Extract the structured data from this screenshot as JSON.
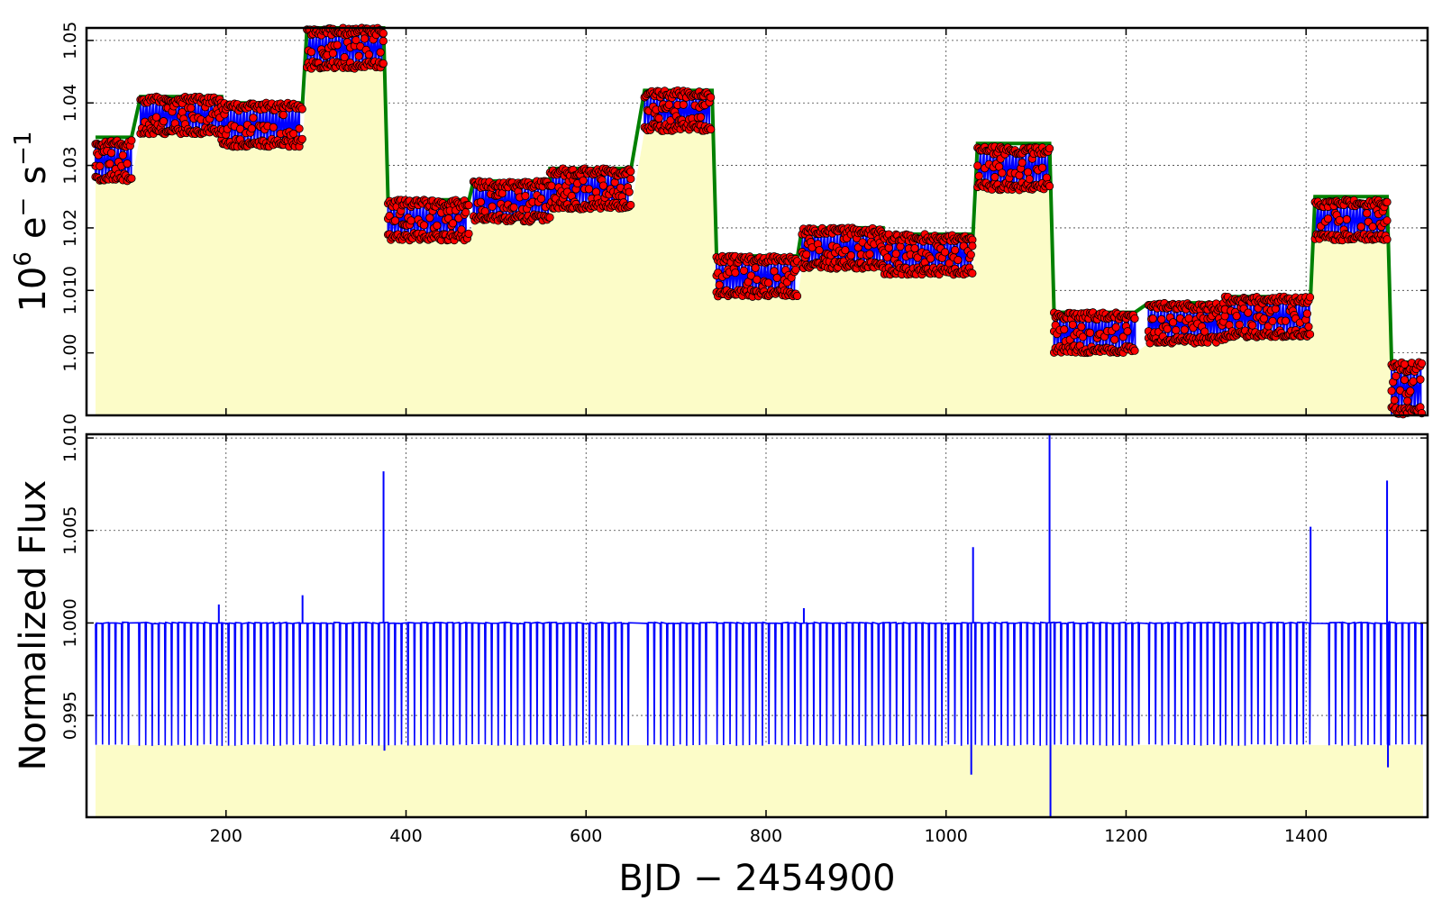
{
  "chart_data": [
    {
      "id": "top",
      "type": "scatter",
      "ylabel_base": "10",
      "ylabel_exp": "6",
      "ylabel_unit1": "e",
      "ylabel_unit1_sup": "−",
      "ylabel_unit2": "s",
      "ylabel_unit2_sup": "−1",
      "xlim": [
        45,
        1535
      ],
      "ylim": [
        0.99,
        1.052
      ],
      "grid": true,
      "yticks": [
        1.0,
        1.01,
        1.02,
        1.03,
        1.04,
        1.05
      ],
      "ytick_labels": [
        "1.00",
        "1.010",
        "1.02",
        "1.03",
        "1.04",
        "1.05"
      ],
      "xticks": [
        200,
        400,
        600,
        800,
        1000,
        1200,
        1400
      ],
      "colors": {
        "fill": "#fcfcc8",
        "trend": "#008000",
        "points": "#ff0000",
        "point_edge": "#000000",
        "line": "#0000ff"
      },
      "quarters": [
        {
          "x0": 55,
          "x1": 95,
          "lo": 1.0275,
          "hi": 1.034,
          "trend": 1.0345
        },
        {
          "x0": 105,
          "x1": 195,
          "lo": 1.035,
          "hi": 1.041,
          "trend": 1.041
        },
        {
          "x0": 195,
          "x1": 285,
          "lo": 1.033,
          "hi": 1.04,
          "trend": 1.04
        },
        {
          "x0": 290,
          "x1": 375,
          "lo": 1.0455,
          "hi": 1.052,
          "trend": 1.052
        },
        {
          "x0": 380,
          "x1": 470,
          "lo": 1.018,
          "hi": 1.0245,
          "trend": 1.0245
        },
        {
          "x0": 475,
          "x1": 560,
          "lo": 1.021,
          "hi": 1.0275,
          "trend": 1.0275
        },
        {
          "x0": 560,
          "x1": 650,
          "lo": 1.023,
          "hi": 1.0295,
          "trend": 1.0295
        },
        {
          "x0": 665,
          "x1": 740,
          "lo": 1.0355,
          "hi": 1.042,
          "trend": 1.042
        },
        {
          "x0": 745,
          "x1": 835,
          "lo": 1.009,
          "hi": 1.0155,
          "trend": 1.0155
        },
        {
          "x0": 840,
          "x1": 930,
          "lo": 1.0135,
          "hi": 1.02,
          "trend": 1.02
        },
        {
          "x0": 930,
          "x1": 1030,
          "lo": 1.0125,
          "hi": 1.019,
          "trend": 1.019
        },
        {
          "x0": 1035,
          "x1": 1115,
          "lo": 1.026,
          "hi": 1.033,
          "trend": 1.0335
        },
        {
          "x0": 1120,
          "x1": 1210,
          "lo": 1.0,
          "hi": 1.0065,
          "trend": 1.0065
        },
        {
          "x0": 1225,
          "x1": 1310,
          "lo": 1.0015,
          "hi": 1.008,
          "trend": 1.008
        },
        {
          "x0": 1310,
          "x1": 1405,
          "lo": 1.0025,
          "hi": 1.009,
          "trend": 1.009
        },
        {
          "x0": 1410,
          "x1": 1490,
          "lo": 1.018,
          "hi": 1.0245,
          "trend": 1.025
        },
        {
          "x0": 1495,
          "x1": 1530,
          "lo": 0.99,
          "hi": 0.9985,
          "trend": 0.9985
        }
      ]
    },
    {
      "id": "bottom",
      "type": "line",
      "xlabel": "BJD − 2454900",
      "ylabel": "Normalized Flux",
      "xlim": [
        45,
        1535
      ],
      "ylim": [
        0.9895,
        1.0102
      ],
      "grid": true,
      "yticks": [
        0.995,
        1.0,
        1.005,
        1.01
      ],
      "ytick_labels": [
        "0.995",
        "1.000",
        "1.005",
        "1.010"
      ],
      "xticks": [
        200,
        400,
        600,
        800,
        1000,
        1200,
        1400
      ],
      "colors": {
        "fill": "#fcfcc8",
        "line": "#0000ff"
      },
      "baseline": 1.0,
      "dip_depth": 0.9934,
      "segments": [
        {
          "x0": 55,
          "x1": 95
        },
        {
          "x0": 103,
          "x1": 195
        },
        {
          "x0": 195,
          "x1": 285
        },
        {
          "x0": 290,
          "x1": 375
        },
        {
          "x0": 380,
          "x1": 470
        },
        {
          "x0": 473,
          "x1": 560
        },
        {
          "x0": 560,
          "x1": 650
        },
        {
          "x0": 668,
          "x1": 740
        },
        {
          "x0": 745,
          "x1": 835
        },
        {
          "x0": 838,
          "x1": 930
        },
        {
          "x0": 930,
          "x1": 1030
        },
        {
          "x0": 1032,
          "x1": 1115
        },
        {
          "x0": 1120,
          "x1": 1220
        },
        {
          "x0": 1225,
          "x1": 1310
        },
        {
          "x0": 1310,
          "x1": 1405
        },
        {
          "x0": 1425,
          "x1": 1490
        },
        {
          "x0": 1492,
          "x1": 1530
        }
      ],
      "spikes": [
        {
          "x": 192,
          "y": 1.001
        },
        {
          "x": 285,
          "y": 1.0015
        },
        {
          "x": 375,
          "y": 1.0082
        },
        {
          "x": 376,
          "y": 0.9931
        },
        {
          "x": 842,
          "y": 1.0008
        },
        {
          "x": 1030,
          "y": 1.0041
        },
        {
          "x": 1028,
          "y": 0.9918
        },
        {
          "x": 1115,
          "y": 1.0102
        },
        {
          "x": 1116,
          "y": 0.9895
        },
        {
          "x": 1405,
          "y": 1.0052
        },
        {
          "x": 1490,
          "y": 1.0077
        },
        {
          "x": 1491,
          "y": 0.9922
        }
      ]
    }
  ]
}
